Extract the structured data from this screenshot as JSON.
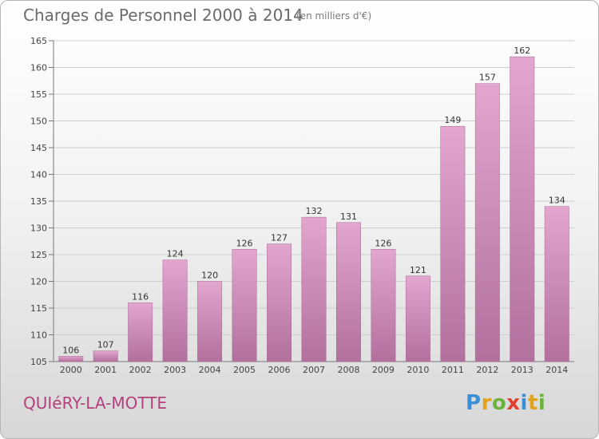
{
  "header": {
    "title": "Charges de Personnel 2000 à 2014",
    "subtitle": "(en milliers d'€)"
  },
  "footer": {
    "town": "QUIéRY-LA-MOTTE",
    "logo_text": "Proxiti",
    "logo_letters": [
      {
        "ch": "P",
        "color": "#3a8fd6"
      },
      {
        "ch": "r",
        "color": "#e3a21a"
      },
      {
        "ch": "o",
        "color": "#6bb33a"
      },
      {
        "ch": "x",
        "color": "#e2412f"
      },
      {
        "ch": "i",
        "color": "#3a8fd6"
      },
      {
        "ch": "t",
        "color": "#e3a21a"
      },
      {
        "ch": "i",
        "color": "#6bb33a"
      }
    ]
  },
  "colors": {
    "bar_top": "#e2a6cf",
    "bar_bottom": "#b2709d",
    "grid": "#cfcfcf",
    "axis_text": "#444444",
    "town_text": "#b4417e"
  },
  "chart_data": {
    "type": "bar",
    "categories": [
      "2000",
      "2001",
      "2002",
      "2003",
      "2004",
      "2005",
      "2006",
      "2007",
      "2008",
      "2009",
      "2010",
      "2011",
      "2012",
      "2013",
      "2014"
    ],
    "values": [
      106,
      107,
      116,
      124,
      120,
      126,
      127,
      132,
      131,
      126,
      121,
      149,
      157,
      162,
      134
    ],
    "ylim": [
      105,
      165
    ],
    "yticks": [
      105,
      110,
      115,
      120,
      125,
      130,
      135,
      140,
      145,
      150,
      155,
      160,
      165
    ],
    "grid": true,
    "data_labels": true
  }
}
